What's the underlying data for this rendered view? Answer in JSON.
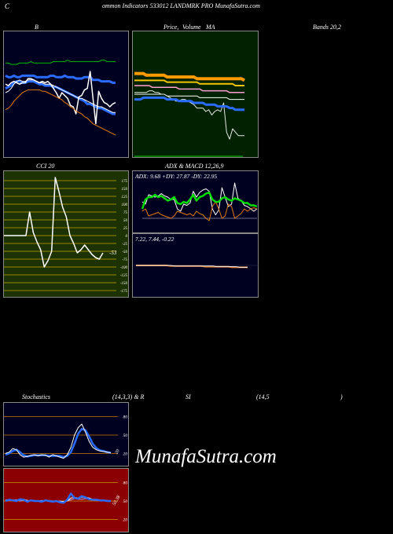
{
  "header": {
    "c_letter": "C",
    "title": "ommon  Indicators 533012  LANDMRK PRO MunafaSutra.com"
  },
  "labels": {
    "b": "B",
    "price_ma": "Price,",
    "volume_overlay": "Volume",
    "ma": "MA",
    "bands": "Bands 20,2",
    "cci": "CCI 20",
    "adx_macd": "ADX  & MACD 12,26,9",
    "adx_values": "ADX: 9.68  +DY: 27.87 -DY: 22.95",
    "macd_values": "7.22,  7.44,  -0.22",
    "stoch_label": "Stochastics",
    "stoch_params": "(14,3,3) & R",
    "si": "SI",
    "rsi_params": "(14,5",
    "rsi_close": ")",
    "cci_last": "-53",
    "stoch_last": "20",
    "rsi_last": "50.38"
  },
  "watermark": "MunafaSutra.com",
  "colors": {
    "dark_bg": "#000020",
    "green_bg": "#002200",
    "olive_bg": "#1c3200",
    "red_bg": "#8b0000",
    "blue_line": "#2a6cff",
    "white_line": "#ffffff",
    "green_line": "#00c000",
    "orange_line": "#e07a10",
    "orange_ma": "#ff9900"
  },
  "chart_data": [
    {
      "id": "bollinger",
      "type": "line",
      "series": [
        {
          "values": [
            11,
            11,
            10,
            10,
            10,
            11,
            11,
            11,
            11,
            12,
            11,
            11,
            11,
            11,
            11,
            11,
            11,
            12,
            12,
            12,
            12,
            12,
            13,
            12,
            12,
            12,
            12,
            12,
            12,
            12,
            12,
            12,
            12,
            12,
            13,
            13,
            12,
            12,
            12,
            12
          ]
        },
        {
          "values": [
            2,
            1,
            1,
            2,
            1,
            1,
            2,
            2,
            2,
            2,
            2,
            1,
            1,
            1,
            1,
            1,
            2,
            2,
            1,
            1,
            1,
            2,
            1,
            1,
            1,
            0,
            0,
            0,
            1,
            1,
            1,
            -1,
            -1,
            -1,
            -2,
            -2,
            -2,
            -2,
            -3,
            -3
          ]
        },
        {
          "values": [
            -7,
            -6,
            -5,
            -3,
            -2,
            -2,
            -3,
            -3,
            -2,
            -2,
            -2,
            -3,
            -4,
            -4,
            -5,
            -5,
            -5,
            -6,
            -6,
            -7,
            -8,
            -9,
            -10,
            -11,
            -12,
            -13,
            -14,
            -15,
            -16,
            -18,
            -18,
            -19,
            -20,
            -21,
            -21,
            -22,
            -23,
            -24,
            -25,
            -25
          ]
        },
        {
          "values": [
            -4,
            -5,
            -3,
            -2,
            -3,
            -4,
            -3,
            -3,
            0,
            0,
            -1,
            -2,
            -3,
            -2,
            -3,
            -2,
            -4,
            -7,
            -10,
            -14,
            -10,
            -12,
            -14,
            -19,
            -20,
            -25,
            -13,
            -12,
            -8,
            -7,
            5,
            -14,
            -32,
            -9,
            -14,
            -17,
            -18,
            -20,
            -18,
            -17
          ]
        },
        {
          "values": [
            -10,
            -9,
            -7,
            -4,
            -2,
            -1,
            -2,
            -2,
            -1,
            -1,
            -1,
            -2,
            -3,
            -3,
            -4,
            -4,
            -4,
            -5,
            -6,
            -7,
            -8,
            -9,
            -10,
            -11,
            -12,
            -13,
            -14,
            -14,
            -15,
            -16,
            -17,
            -18,
            -19,
            -20,
            -20,
            -21,
            -22,
            -23,
            -24,
            -24
          ]
        },
        {
          "values": [
            -22,
            -21,
            -19,
            -16,
            -14,
            -12,
            -10,
            -9,
            -8,
            -8,
            -8,
            -8,
            -8,
            -9,
            -9,
            -10,
            -11,
            -12,
            -13,
            -14,
            -15,
            -17,
            -18,
            -20,
            -21,
            -23,
            -24,
            -25,
            -27,
            -28,
            -30,
            -32,
            -33,
            -34,
            -35,
            -36,
            -37,
            -38,
            -39,
            -40
          ]
        }
      ]
    },
    {
      "id": "price_ma",
      "type": "line",
      "series": [
        {
          "values": [
            12,
            12,
            12,
            12,
            11,
            11,
            11,
            11,
            11,
            11,
            11,
            10,
            10,
            10,
            10,
            10,
            10,
            10,
            10,
            10,
            10,
            9,
            9,
            9,
            9,
            9,
            9,
            9,
            9,
            9,
            9,
            9,
            9,
            9,
            9,
            9,
            9,
            8
          ]
        },
        {
          "values": [
            8,
            8,
            8,
            8,
            8,
            8,
            8,
            8,
            8,
            8,
            8,
            7,
            7,
            7,
            7,
            7,
            7,
            7,
            7,
            7,
            7,
            7,
            6,
            6,
            6,
            6,
            6,
            6,
            6,
            6,
            6,
            6,
            6,
            6,
            5,
            5,
            5,
            5
          ]
        },
        {
          "values": [
            5,
            5,
            5,
            5,
            5,
            5,
            4,
            4,
            4,
            4,
            4,
            4,
            4,
            4,
            4,
            3,
            3,
            3,
            3,
            3,
            3,
            3,
            3,
            2,
            2,
            2,
            2,
            2,
            2,
            2,
            2,
            2,
            1,
            1,
            1,
            1,
            1,
            1
          ]
        },
        {
          "values": [
            0,
            0,
            0,
            0,
            0,
            0,
            0,
            0,
            0,
            0,
            0,
            -1,
            -1,
            -1,
            -1,
            -1,
            -1,
            -1,
            -1,
            -1,
            -1,
            -1,
            -2,
            -2,
            -2,
            -2,
            -2,
            -2,
            -2,
            -2,
            -2,
            -2,
            -3,
            -3,
            -3,
            -3,
            -3,
            -3
          ]
        },
        {
          "values": [
            1,
            1,
            1,
            1,
            1,
            2,
            2,
            1,
            1,
            0,
            0,
            -1,
            -2,
            -3,
            -4,
            -4,
            -3,
            -3,
            -4,
            -5,
            -6,
            -8,
            -8,
            -8,
            -10,
            -9,
            -12,
            -10,
            -9,
            -10,
            -5,
            -22,
            -26,
            -20,
            -22,
            -24,
            -24,
            -24
          ]
        },
        {
          "values": [
            -3,
            -3,
            -3,
            -2,
            -2,
            -2,
            -2,
            -2,
            -2,
            -2,
            -2,
            -3,
            -3,
            -3,
            -3,
            -4,
            -4,
            -4,
            -4,
            -4,
            -5,
            -5,
            -5,
            -5,
            -6,
            -6,
            -6,
            -6,
            -7,
            -7,
            -7,
            -7,
            -8,
            -8,
            -9,
            -9,
            -9,
            -9
          ]
        }
      ]
    },
    {
      "id": "cci",
      "type": "line",
      "ylim": [
        -175,
        175
      ],
      "ticks": [
        175,
        150,
        125,
        100,
        75,
        50,
        25,
        0,
        -25,
        -50,
        -75,
        -100,
        -125,
        -150,
        -175
      ],
      "values": [
        0,
        0,
        0,
        0,
        0,
        0,
        0,
        75,
        10,
        -20,
        -45,
        -100,
        -80,
        -50,
        185,
        140,
        90,
        60,
        0,
        -25,
        -55,
        -45,
        -30,
        -45,
        -60,
        -70,
        -75,
        -55
      ]
    },
    {
      "id": "adx",
      "type": "line",
      "series": [
        {
          "values": [
            20,
            28,
            30,
            30,
            32,
            30,
            31,
            29,
            27,
            28,
            30,
            25,
            24,
            26,
            25,
            28,
            32,
            27,
            30,
            31,
            33,
            34,
            28,
            26,
            26,
            29,
            30,
            28,
            27,
            29,
            28,
            27,
            25,
            25,
            23,
            23,
            22
          ]
        },
        {
          "values": [
            26,
            24,
            32,
            31,
            30,
            31,
            33,
            31,
            30,
            28,
            28,
            20,
            18,
            24,
            23,
            25,
            35,
            30,
            34,
            36,
            37,
            35,
            20,
            15,
            19,
            38,
            30,
            22,
            24,
            42,
            29,
            27,
            23,
            22,
            20,
            18,
            20
          ]
        },
        {
          "values": [
            18,
            20,
            14,
            15,
            16,
            17,
            15,
            14,
            13,
            12,
            14,
            18,
            17,
            16,
            15,
            16,
            14,
            18,
            16,
            15,
            12,
            10,
            22,
            26,
            20,
            12,
            14,
            24,
            22,
            12,
            14,
            16,
            20,
            18,
            20,
            21,
            20
          ]
        },
        {
          "values": [
            12,
            12,
            12,
            12,
            12,
            12,
            12,
            12,
            12,
            12,
            12,
            12,
            12,
            12,
            12,
            12,
            12,
            12,
            12,
            12,
            12,
            12,
            12,
            12,
            12,
            12,
            12,
            12,
            12,
            12,
            12,
            12,
            12,
            12,
            12,
            12,
            12
          ]
        }
      ]
    },
    {
      "id": "macd",
      "type": "line",
      "series": [
        {
          "values": [
            0,
            0,
            0,
            0,
            0,
            0,
            0,
            0,
            0,
            0,
            -1,
            -1,
            -1,
            -1,
            -1,
            -1,
            -1,
            -1,
            -1,
            -1,
            -1,
            -2,
            -2,
            -2,
            -2,
            -2,
            -2,
            -3,
            -3,
            -3
          ]
        },
        {
          "values": [
            0,
            0,
            0,
            0,
            0,
            0,
            0,
            0,
            0,
            -1,
            -1,
            -1,
            -1,
            -1,
            -1,
            -1,
            -1,
            -1,
            -2,
            -2,
            -2,
            -2,
            -2,
            -2,
            -2,
            -3,
            -3,
            -3,
            -3,
            -3
          ]
        }
      ]
    },
    {
      "id": "stochastics",
      "type": "line",
      "ylim": [
        0,
        100
      ],
      "ticks": [
        80,
        50,
        20
      ],
      "series": [
        {
          "values": [
            20,
            22,
            28,
            26,
            18,
            14,
            15,
            17,
            18,
            16,
            18,
            17,
            14,
            18,
            16,
            14,
            12,
            18,
            30,
            50,
            62,
            68,
            55,
            40,
            30,
            26,
            24,
            23,
            22,
            21
          ]
        },
        {
          "values": [
            18,
            20,
            24,
            26,
            22,
            17,
            15,
            16,
            17,
            17,
            17,
            17,
            16,
            16,
            16,
            16,
            14,
            16,
            22,
            36,
            52,
            60,
            58,
            48,
            36,
            29,
            25,
            24,
            22,
            21
          ]
        }
      ]
    },
    {
      "id": "rsi",
      "type": "line",
      "ylim": [
        0,
        100
      ],
      "ticks": [
        80,
        50,
        20
      ],
      "series": [
        {
          "values": [
            50,
            52,
            51,
            50,
            53,
            52,
            49,
            51,
            50,
            50,
            49,
            51,
            50,
            49,
            50,
            48,
            47,
            52,
            62,
            55,
            54,
            58,
            56,
            53,
            52,
            52,
            51,
            51,
            50,
            50
          ]
        },
        {
          "values": [
            51,
            52,
            52,
            51,
            52,
            53,
            51,
            50,
            50,
            50,
            50,
            50,
            50,
            50,
            50,
            49,
            49,
            50,
            55,
            56,
            55,
            56,
            56,
            55,
            53,
            52,
            52,
            51,
            51,
            50
          ]
        },
        {
          "values": [
            52,
            52,
            51,
            52,
            50,
            51,
            51,
            50,
            51,
            50,
            51,
            50,
            51,
            50,
            49,
            50,
            49,
            50,
            52,
            54,
            53,
            53,
            54,
            53,
            52,
            52,
            51,
            51,
            50,
            50
          ]
        }
      ]
    }
  ]
}
